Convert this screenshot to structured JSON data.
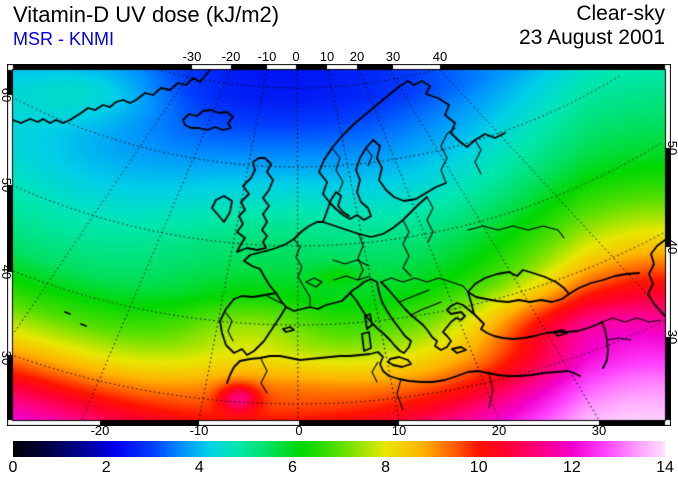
{
  "header": {
    "title": "Vitamin-D UV dose (kJ/m2)",
    "source": "MSR - KNMI",
    "condition": "Clear-sky",
    "date": "23 August 2001"
  },
  "chart_data": {
    "type": "heatmap",
    "title": "Vitamin-D UV dose (kJ/m2)",
    "source": "MSR - KNMI",
    "condition": "Clear-sky",
    "date": "23 August 2001",
    "units": "kJ/m2",
    "region": "Europe / North Atlantic map (north-polar conic style view)",
    "grid": "dotted graticule every 10 degrees",
    "top_axis_lon_ticks": [
      "-30",
      "-20",
      "-10",
      "0",
      "10",
      "20",
      "30",
      "40"
    ],
    "bottom_axis_lon_ticks": [
      "-20",
      "-10",
      "0",
      "10",
      "20",
      "30"
    ],
    "left_axis_lat_ticks": [
      "60",
      "50",
      "40",
      "30"
    ],
    "right_axis_lat_ticks": [
      "50",
      "40",
      "30"
    ],
    "colorbar": {
      "min": 0,
      "max": 14,
      "tick_labels": [
        "0",
        "2",
        "4",
        "6",
        "8",
        "10",
        "12",
        "14"
      ],
      "stops": [
        {
          "v": 0.0,
          "c": "#000000"
        },
        {
          "v": 0.8,
          "c": "#00004c"
        },
        {
          "v": 1.6,
          "c": "#0000a0"
        },
        {
          "v": 2.2,
          "c": "#0000ee"
        },
        {
          "v": 3.0,
          "c": "#0040ff"
        },
        {
          "v": 3.6,
          "c": "#0090ff"
        },
        {
          "v": 4.2,
          "c": "#00d0e8"
        },
        {
          "v": 4.8,
          "c": "#00e8b0"
        },
        {
          "v": 5.5,
          "c": "#00e060"
        },
        {
          "v": 6.2,
          "c": "#00d800"
        },
        {
          "v": 7.0,
          "c": "#58e000"
        },
        {
          "v": 8.0,
          "c": "#e8e800"
        },
        {
          "v": 8.8,
          "c": "#ffb400"
        },
        {
          "v": 9.4,
          "c": "#ff6800"
        },
        {
          "v": 10.0,
          "c": "#ff1400"
        },
        {
          "v": 10.6,
          "c": "#ff0030"
        },
        {
          "v": 11.2,
          "c": "#ff0078"
        },
        {
          "v": 12.0,
          "c": "#f400cc"
        },
        {
          "v": 12.7,
          "c": "#ff40ff"
        },
        {
          "v": 13.4,
          "c": "#ff9cff"
        },
        {
          "v": 14.0,
          "c": "#ffe2ff"
        }
      ]
    },
    "estimated_dose_kJ_m2_by_area": [
      {
        "area": "Arctic top edge (centre)",
        "value": 2.0
      },
      {
        "area": "Northern Scandinavia",
        "value": 2.8
      },
      {
        "area": "Iceland",
        "value": 3.0
      },
      {
        "area": "Greenland interior (top-left)",
        "value": 4.5
      },
      {
        "area": "North-east corner (Russia)",
        "value": 4.5
      },
      {
        "area": "British Isles",
        "value": 4.5
      },
      {
        "area": "Baltic region",
        "value": 4.5
      },
      {
        "area": "Central Europe / France",
        "value": 5.5
      },
      {
        "area": "Iberia",
        "value": 7.5
      },
      {
        "area": "Central Mediterranean",
        "value": 8.0
      },
      {
        "area": "Turkey interior",
        "value": 9.5
      },
      {
        "area": "North Africa coast",
        "value": 10.0
      },
      {
        "area": "Atlantic south-west corner",
        "value": 11.0
      },
      {
        "area": "Atlas mountains hotspot",
        "value": 11.5
      },
      {
        "area": "Middle East / south-east corner",
        "value": 13.0
      }
    ]
  }
}
